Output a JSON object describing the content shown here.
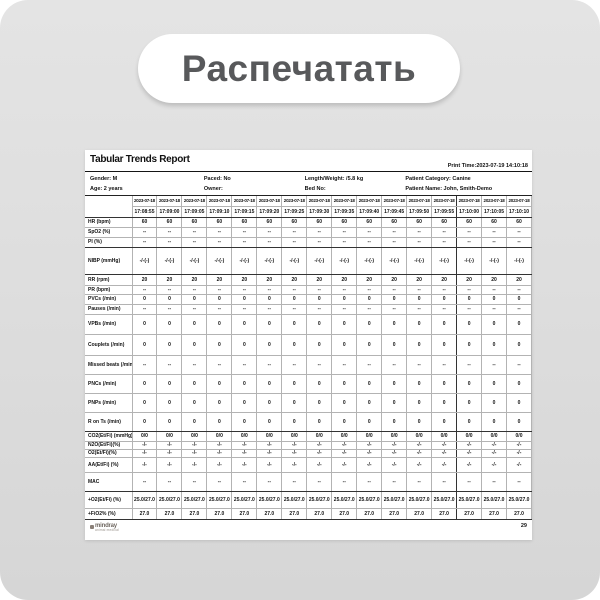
{
  "print_button": {
    "label": "Распечатать"
  },
  "colors": {
    "tile_background": "#dedede",
    "button_background": "#ffffff",
    "button_text": "#58595b",
    "page_background": "#ffffff",
    "grid_line": "#b3b3b3",
    "section_line": "#333333"
  },
  "report": {
    "title": "Tabular Trends Report",
    "print_time": "Print Time:2023-07-19 14:10:18",
    "patient_info": [
      [
        "Gender: M",
        "Paced: No",
        "Length/Weight: /5.8 kg",
        "Patient Category: Canine"
      ],
      [
        "Age: 2 years",
        "Owner:",
        "Bed No:",
        "Patient Name: John, Smith-Demo"
      ]
    ],
    "logo_text": "mindray",
    "logo_sub": "animal medical",
    "page_number": "29",
    "table": {
      "date": "2023-07-18",
      "times": [
        "17:08:55",
        "17:09:00",
        "17:09:05",
        "17:09:10",
        "17:09:15",
        "17:09:20",
        "17:09:25",
        "17:09:30",
        "17:09:35",
        "17:09:40",
        "17:09:45",
        "17:09:50",
        "17:09:55",
        "17:10:00",
        "17:10:05",
        "17:10:10"
      ],
      "rows": [
        {
          "label": "HR (bpm)",
          "value": "60"
        },
        {
          "label": "SpO2 (%)",
          "value": "--"
        },
        {
          "label": "PI (%)",
          "value": "--"
        },
        {
          "label": "NIBP (mmHg)",
          "value": "-/-(-)"
        },
        {
          "label": "RR (rpm)",
          "value": "20"
        },
        {
          "label": "PR (bpm)",
          "value": "--"
        },
        {
          "label": "PVCs (/min)",
          "value": "0"
        },
        {
          "label": "Pauses (/min)",
          "value": "--"
        },
        {
          "label": "VPBs (/min)",
          "value": "0"
        },
        {
          "label": "Couplets (/min)",
          "value": "0"
        },
        {
          "label": "Missed beats (/min)",
          "value": "--"
        },
        {
          "label": "PNCs (/min)",
          "value": "0"
        },
        {
          "label": "PNPs (/min)",
          "value": "0"
        },
        {
          "label": "R on Ts (/min)",
          "value": "0"
        },
        {
          "label": "CO2(Et/Fi) (mmHg)",
          "value": "0/0"
        },
        {
          "label": "N2O(Et/Fi)(%)",
          "value": "-/-"
        },
        {
          "label": "O2(Et/Fi)(%)",
          "value": "-/-"
        },
        {
          "label": "AA(Et/Fi) (%)",
          "value": "-/-"
        },
        {
          "label": "MAC",
          "value": "--"
        },
        {
          "label": "+O2(Et/Fi) (%)",
          "value": "25.0/27.0"
        },
        {
          "label": "+FiO2% (%)",
          "value": "27.0"
        }
      ]
    }
  }
}
